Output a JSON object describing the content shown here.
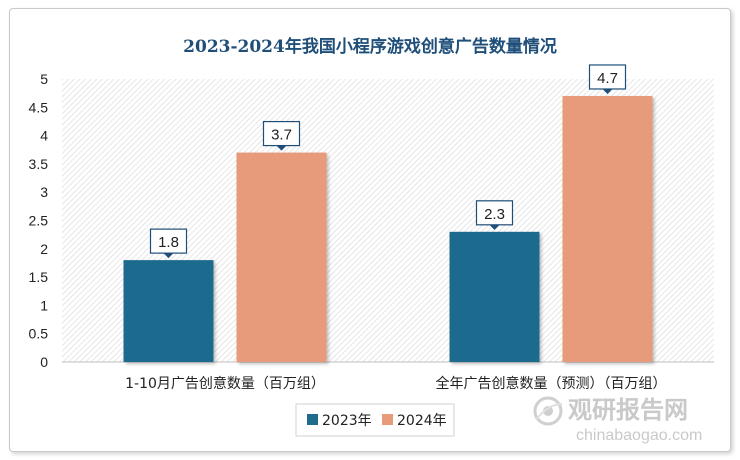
{
  "chart_data": {
    "type": "bar",
    "title": "2023-2024年我国小程序游戏创意广告数量情况",
    "categories": [
      "1-10月广告创意数量（百万组）",
      "全年广告创意数量（预测）（百万组）"
    ],
    "series": [
      {
        "name": "2023年",
        "values": [
          1.8,
          2.3
        ],
        "color": "#1f6b8e"
      },
      {
        "name": "2024年",
        "values": [
          3.7,
          4.7
        ],
        "color": "#e89b7a"
      }
    ],
    "yticks": [
      "0",
      "0.5",
      "1",
      "1.5",
      "2",
      "2.5",
      "3",
      "3.5",
      "4",
      "4.5",
      "5"
    ],
    "ylim": [
      0,
      5
    ],
    "grid": false,
    "legend_position": "bottom"
  },
  "watermark": {
    "name": "观研报告网",
    "url": "chinabaogao.com"
  }
}
